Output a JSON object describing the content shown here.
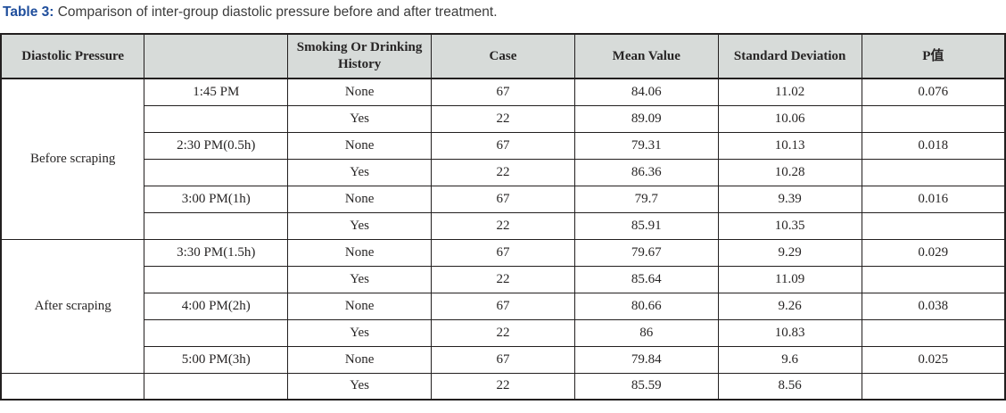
{
  "caption": {
    "label": "Table 3:",
    "text": " Comparison of inter-group diastolic pressure before and after treatment."
  },
  "colors": {
    "caption_label_blue": "#1f4e9c",
    "header_background": "#d7dbd9",
    "grid_border": "#221f1f",
    "body_text": "#272525"
  },
  "table": {
    "headers": [
      "Diastolic Pressure",
      "",
      "Smoking Or Drinking History",
      "Case",
      "Mean Value",
      "Standard Deviation",
      "P值"
    ],
    "groups": [
      {
        "label": "Before scraping",
        "rowspan": 6
      },
      {
        "label": "After scraping",
        "rowspan": 5
      },
      {
        "label": "",
        "rowspan": 1
      }
    ],
    "rows": [
      {
        "time": "1:45 PM",
        "history": "None",
        "case": "67",
        "mean": "84.06",
        "sd": "11.02",
        "p": "0.076"
      },
      {
        "time": "",
        "history": "Yes",
        "case": "22",
        "mean": "89.09",
        "sd": "10.06",
        "p": ""
      },
      {
        "time": "2:30 PM(0.5h)",
        "history": "None",
        "case": "67",
        "mean": "79.31",
        "sd": "10.13",
        "p": "0.018"
      },
      {
        "time": "",
        "history": "Yes",
        "case": "22",
        "mean": "86.36",
        "sd": "10.28",
        "p": ""
      },
      {
        "time": "3:00 PM(1h)",
        "history": "None",
        "case": "67",
        "mean": "79.7",
        "sd": "9.39",
        "p": "0.016"
      },
      {
        "time": "",
        "history": "Yes",
        "case": "22",
        "mean": "85.91",
        "sd": "10.35",
        "p": ""
      },
      {
        "time": "3:30 PM(1.5h)",
        "history": "None",
        "case": "67",
        "mean": "79.67",
        "sd": "9.29",
        "p": "0.029"
      },
      {
        "time": "",
        "history": "Yes",
        "case": "22",
        "mean": "85.64",
        "sd": "11.09",
        "p": ""
      },
      {
        "time": "4:00 PM(2h)",
        "history": "None",
        "case": "67",
        "mean": "80.66",
        "sd": "9.26",
        "p": "0.038"
      },
      {
        "time": "",
        "history": "Yes",
        "case": "22",
        "mean": "86",
        "sd": "10.83",
        "p": ""
      },
      {
        "time": "5:00 PM(3h)",
        "history": "None",
        "case": "67",
        "mean": "79.84",
        "sd": "9.6",
        "p": "0.025"
      },
      {
        "time": "",
        "history": "Yes",
        "case": "22",
        "mean": "85.59",
        "sd": "8.56",
        "p": ""
      }
    ]
  }
}
